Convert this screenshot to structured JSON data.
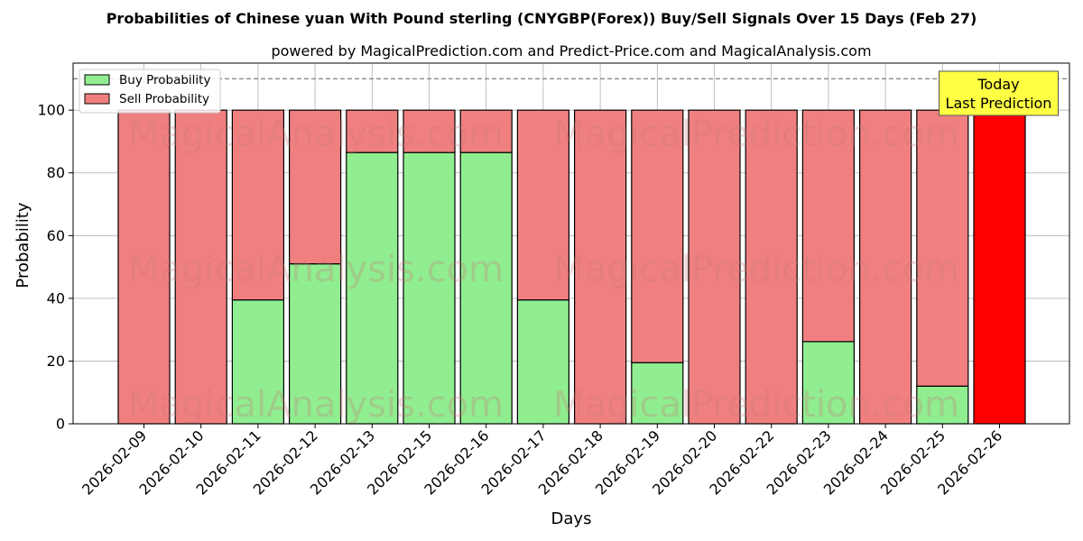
{
  "chart_data": {
    "type": "bar",
    "stacked": true,
    "title": "Probabilities of Chinese yuan With Pound sterling (CNYGBP(Forex)) Buy/Sell Signals Over 15 Days (Feb 27)",
    "subtitle": "powered by MagicalPrediction.com and Predict-Price.com and MagicalAnalysis.com",
    "xlabel": "Days",
    "ylabel": "Probability",
    "ylim": [
      0,
      115
    ],
    "yticks": [
      0,
      20,
      40,
      60,
      80,
      100
    ],
    "reference_line": 110,
    "grid": true,
    "legend_position": "top-left",
    "categories": [
      "2026-02-09",
      "2026-02-10",
      "2026-02-11",
      "2026-02-12",
      "2026-02-13",
      "2026-02-15",
      "2026-02-16",
      "2026-02-17",
      "2026-02-18",
      "2026-02-19",
      "2026-02-20",
      "2026-02-22",
      "2026-02-23",
      "2026-02-24",
      "2026-02-25",
      "2026-02-26"
    ],
    "series": [
      {
        "name": "Buy Probability",
        "color": "#90ee90",
        "values": [
          0,
          0,
          39.5,
          51,
          86.5,
          86.5,
          86.5,
          39.5,
          0,
          19.5,
          0,
          0,
          26.2,
          0,
          12,
          0
        ]
      },
      {
        "name": "Sell Probability",
        "color": "#f08080",
        "values": [
          100,
          100,
          60.5,
          49,
          13.5,
          13.5,
          13.5,
          60.5,
          100,
          80.5,
          100,
          100,
          73.8,
          100,
          88,
          100
        ]
      }
    ],
    "highlight": {
      "index": 15,
      "color": "#ff0000",
      "label_lines": [
        "Today",
        "Last Prediction"
      ],
      "label_bg": "#ffff44"
    },
    "watermarks": [
      "MagicalAnalysis.com",
      "MagicalPrediction.com"
    ]
  }
}
